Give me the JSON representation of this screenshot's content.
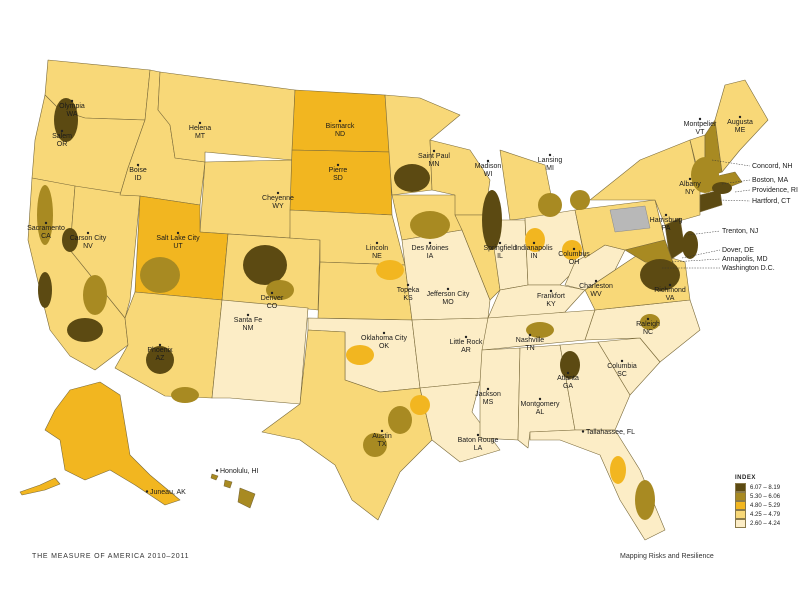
{
  "legend": {
    "title": "INDEX",
    "items": [
      {
        "label": "6.07 – 8.19",
        "color": "#5c4a12"
      },
      {
        "label": "5.30 – 6.06",
        "color": "#a88a22"
      },
      {
        "label": "4.80 – 5.29",
        "color": "#f2b620"
      },
      {
        "label": "4.25 – 4.79",
        "color": "#f8d878"
      },
      {
        "label": "2.60 – 4.24",
        "color": "#fcedc6"
      }
    ]
  },
  "footer": {
    "left": "THE MEASURE OF AMERICA 2010–2011",
    "right": "Mapping Risks and Resilience"
  },
  "capitals": [
    {
      "city": "Olympia",
      "state": "WA"
    },
    {
      "city": "Salem",
      "state": "OR"
    },
    {
      "city": "Boise",
      "state": "ID"
    },
    {
      "city": "Helena",
      "state": "MT"
    },
    {
      "city": "Bismarck",
      "state": "ND"
    },
    {
      "city": "Pierre",
      "state": "SD"
    },
    {
      "city": "Saint Paul",
      "state": "MN"
    },
    {
      "city": "Madison",
      "state": "WI"
    },
    {
      "city": "Lansing",
      "state": "MI"
    },
    {
      "city": "Montpelier",
      "state": "VT"
    },
    {
      "city": "Augusta",
      "state": "ME"
    },
    {
      "city": "Albany",
      "state": "NY"
    },
    {
      "city": "Harrisburg",
      "state": "PA"
    },
    {
      "city": "Sacramento",
      "state": "CA"
    },
    {
      "city": "Carson City",
      "state": "NV"
    },
    {
      "city": "Salt Lake City",
      "state": "UT"
    },
    {
      "city": "Cheyenne",
      "state": "WY"
    },
    {
      "city": "Denver",
      "state": "CO"
    },
    {
      "city": "Lincoln",
      "state": "NE"
    },
    {
      "city": "Des Moines",
      "state": "IA"
    },
    {
      "city": "Springfield",
      "state": "IL"
    },
    {
      "city": "Indianapolis",
      "state": "IN"
    },
    {
      "city": "Columbus",
      "state": "OH"
    },
    {
      "city": "Charleston",
      "state": "WV"
    },
    {
      "city": "Richmond",
      "state": "VA"
    },
    {
      "city": "Topeka",
      "state": "KS"
    },
    {
      "city": "Jefferson City",
      "state": "MO"
    },
    {
      "city": "Frankfort",
      "state": "KY"
    },
    {
      "city": "Santa Fe",
      "state": "NM"
    },
    {
      "city": "Oklahoma City",
      "state": "OK"
    },
    {
      "city": "Nashville",
      "state": "TN"
    },
    {
      "city": "Raleigh",
      "state": "NC"
    },
    {
      "city": "Phoenix",
      "state": "AZ"
    },
    {
      "city": "Little Rock",
      "state": "AR"
    },
    {
      "city": "Columbia",
      "state": "SC"
    },
    {
      "city": "Atlanta",
      "state": "GA"
    },
    {
      "city": "Jackson",
      "state": "MS"
    },
    {
      "city": "Montgomery",
      "state": "AL"
    },
    {
      "city": "Austin",
      "state": "TX"
    },
    {
      "city": "Baton Rouge",
      "state": "LA"
    }
  ],
  "east_labels": [
    "Concord, NH",
    "Boston, MA",
    "Providence, RI",
    "Hartford, CT",
    "Trenton, NJ",
    "Dover, DE",
    "Annapolis, MD",
    "Washington D.C."
  ],
  "inline_labels": [
    "Tallahassee, FL",
    "Honolulu, HI",
    "Juneau, AK"
  ]
}
